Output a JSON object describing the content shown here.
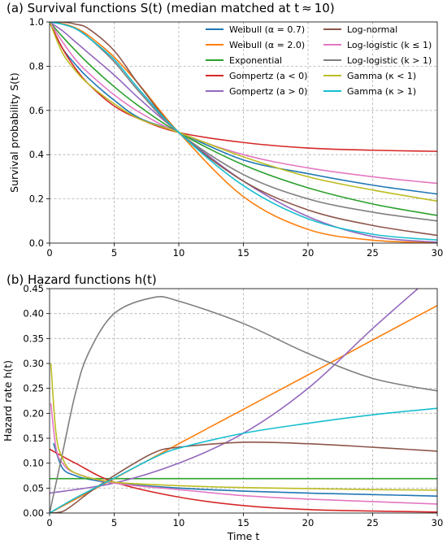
{
  "chart_data": [
    {
      "type": "line",
      "title": "(a) Survival functions S(t) (median matched at t ≈ 10)",
      "xlabel": "",
      "ylabel": "Survival probability S(t)",
      "xlim": [
        0,
        30
      ],
      "ylim": [
        0,
        1.0
      ],
      "xticks": [
        "0",
        "5",
        "10",
        "15",
        "20",
        "25",
        "30"
      ],
      "yticks": [
        "0.0",
        "0.2",
        "0.4",
        "0.6",
        "0.8",
        "1.0"
      ],
      "grid": true,
      "legend_position": "top-right",
      "series": [
        {
          "name": "Weibull (α = 0.7)",
          "color": "#1f77b4",
          "x": [
            0,
            1,
            2,
            3,
            5,
            7,
            10,
            15,
            20,
            25,
            30
          ],
          "y": [
            1.0,
            0.881,
            0.808,
            0.746,
            0.646,
            0.564,
            0.5,
            0.376,
            0.314,
            0.262,
            0.222
          ]
        },
        {
          "name": "Weibull (α = 2.0)",
          "color": "#ff7f0e",
          "x": [
            0,
            1,
            2,
            3,
            5,
            7,
            10,
            15,
            20,
            25,
            30
          ],
          "y": [
            1.0,
            0.993,
            0.973,
            0.939,
            0.841,
            0.712,
            0.5,
            0.21,
            0.062,
            0.013,
            0.002
          ]
        },
        {
          "name": "Exponential",
          "color": "#2ca02c",
          "x": [
            0,
            1,
            2,
            3,
            5,
            7,
            10,
            15,
            20,
            25,
            30
          ],
          "y": [
            1.0,
            0.933,
            0.871,
            0.812,
            0.707,
            0.616,
            0.5,
            0.354,
            0.25,
            0.177,
            0.125
          ]
        },
        {
          "name": "Gompertz (a < 0)",
          "color": "#d62728",
          "x": [
            0,
            1,
            2,
            3,
            5,
            7,
            10,
            15,
            20,
            25,
            30
          ],
          "y": [
            1.0,
            0.88,
            0.79,
            0.72,
            0.62,
            0.56,
            0.5,
            0.455,
            0.43,
            0.42,
            0.415
          ]
        },
        {
          "name": "Gompertz (a > 0)",
          "color": "#9467bd",
          "x": [
            0,
            1,
            2,
            3,
            5,
            7,
            10,
            15,
            20,
            25,
            30
          ],
          "y": [
            1.0,
            0.96,
            0.91,
            0.86,
            0.76,
            0.65,
            0.5,
            0.28,
            0.12,
            0.03,
            0.004
          ]
        },
        {
          "name": "Log-normal",
          "color": "#8c564b",
          "x": [
            0,
            1,
            2,
            3,
            5,
            7,
            10,
            15,
            20,
            25,
            30
          ],
          "y": [
            1.0,
            1.0,
            0.99,
            0.97,
            0.87,
            0.71,
            0.5,
            0.28,
            0.15,
            0.08,
            0.035
          ]
        },
        {
          "name": "Log-logistic (k ≤ 1)",
          "color": "#e377c2",
          "x": [
            0,
            1,
            2,
            3,
            5,
            7,
            10,
            15,
            20,
            25,
            30
          ],
          "y": [
            1.0,
            0.91,
            0.83,
            0.77,
            0.67,
            0.59,
            0.5,
            0.4,
            0.34,
            0.3,
            0.27
          ]
        },
        {
          "name": "Log-logistic (k > 1)",
          "color": "#7f7f7f",
          "x": [
            0,
            1,
            2,
            3,
            5,
            7,
            10,
            15,
            20,
            25,
            30
          ],
          "y": [
            1.0,
            0.99,
            0.97,
            0.93,
            0.82,
            0.68,
            0.5,
            0.31,
            0.2,
            0.14,
            0.1
          ]
        },
        {
          "name": "Gamma (κ < 1)",
          "color": "#bcbd22",
          "x": [
            0,
            1,
            2,
            3,
            5,
            7,
            10,
            15,
            20,
            25,
            30
          ],
          "y": [
            1.0,
            0.86,
            0.78,
            0.72,
            0.63,
            0.56,
            0.5,
            0.39,
            0.3,
            0.24,
            0.19
          ]
        },
        {
          "name": "Gamma (κ > 1)",
          "color": "#17becf",
          "x": [
            0,
            1,
            2,
            3,
            5,
            7,
            10,
            15,
            20,
            25,
            30
          ],
          "y": [
            1.0,
            0.99,
            0.97,
            0.93,
            0.83,
            0.69,
            0.5,
            0.26,
            0.11,
            0.04,
            0.014
          ]
        }
      ]
    },
    {
      "type": "line",
      "title": "(b) Hazard functions h(t)",
      "xlabel": "Time t",
      "ylabel": "Hazard rate h(t)",
      "xlim": [
        0,
        30
      ],
      "ylim": [
        0,
        0.45
      ],
      "xticks": [
        "0",
        "5",
        "10",
        "15",
        "20",
        "25",
        "30"
      ],
      "yticks": [
        "0.00",
        "0.05",
        "0.10",
        "0.15",
        "0.20",
        "0.25",
        "0.30",
        "0.35",
        "0.40",
        "0.45"
      ],
      "grid": true,
      "series": [
        {
          "name": "Weibull (α = 0.7)",
          "color": "#1f77b4",
          "x": [
            0.3,
            1,
            2,
            3,
            5,
            10,
            15,
            20,
            25,
            30
          ],
          "y": [
            0.14,
            0.09,
            0.075,
            0.068,
            0.06,
            0.05,
            0.044,
            0.04,
            0.037,
            0.034
          ]
        },
        {
          "name": "Weibull (α = 2.0)",
          "color": "#ff7f0e",
          "x": [
            0,
            5,
            10,
            15,
            20,
            25,
            30
          ],
          "y": [
            0,
            0.069,
            0.139,
            0.208,
            0.277,
            0.347,
            0.416
          ]
        },
        {
          "name": "Exponential",
          "color": "#2ca02c",
          "x": [
            0,
            30
          ],
          "y": [
            0.069,
            0.069
          ]
        },
        {
          "name": "Gompertz (a < 0)",
          "color": "#d62728",
          "x": [
            0,
            2,
            5,
            10,
            15,
            20,
            25,
            30
          ],
          "y": [
            0.128,
            0.1,
            0.062,
            0.032,
            0.015,
            0.007,
            0.004,
            0.002
          ]
        },
        {
          "name": "Gompertz (a > 0)",
          "color": "#9467bd",
          "x": [
            0,
            5,
            10,
            15,
            20,
            25,
            28.5
          ],
          "y": [
            0.04,
            0.06,
            0.1,
            0.16,
            0.25,
            0.37,
            0.45
          ]
        },
        {
          "name": "Log-normal",
          "color": "#8c564b",
          "x": [
            0,
            1,
            2,
            3,
            5,
            8,
            10,
            15,
            20,
            25,
            30
          ],
          "y": [
            0,
            0.003,
            0.02,
            0.04,
            0.075,
            0.12,
            0.132,
            0.142,
            0.139,
            0.132,
            0.124
          ]
        },
        {
          "name": "Log-logistic (k ≤ 1)",
          "color": "#e377c2",
          "x": [
            0.1,
            0.5,
            1,
            2,
            5,
            10,
            15,
            20,
            25,
            30
          ],
          "y": [
            0.22,
            0.13,
            0.1,
            0.08,
            0.06,
            0.047,
            0.035,
            0.028,
            0.023,
            0.018
          ]
        },
        {
          "name": "Log-logistic (k > 1)",
          "color": "#7f7f7f",
          "x": [
            0,
            1,
            2,
            3,
            5,
            8,
            10,
            15,
            20,
            25,
            30
          ],
          "y": [
            0,
            0.12,
            0.24,
            0.32,
            0.4,
            0.432,
            0.425,
            0.38,
            0.32,
            0.27,
            0.245
          ]
        },
        {
          "name": "Gamma (κ < 1)",
          "color": "#bcbd22",
          "x": [
            0.1,
            0.5,
            1,
            2,
            5,
            10,
            15,
            20,
            25,
            30
          ],
          "y": [
            0.3,
            0.16,
            0.11,
            0.08,
            0.062,
            0.055,
            0.051,
            0.049,
            0.047,
            0.046
          ]
        },
        {
          "name": "Gamma (κ > 1)",
          "color": "#17becf",
          "x": [
            0,
            2,
            5,
            8,
            10,
            15,
            20,
            25,
            30
          ],
          "y": [
            0,
            0.03,
            0.07,
            0.11,
            0.13,
            0.16,
            0.18,
            0.197,
            0.21
          ]
        }
      ]
    }
  ]
}
